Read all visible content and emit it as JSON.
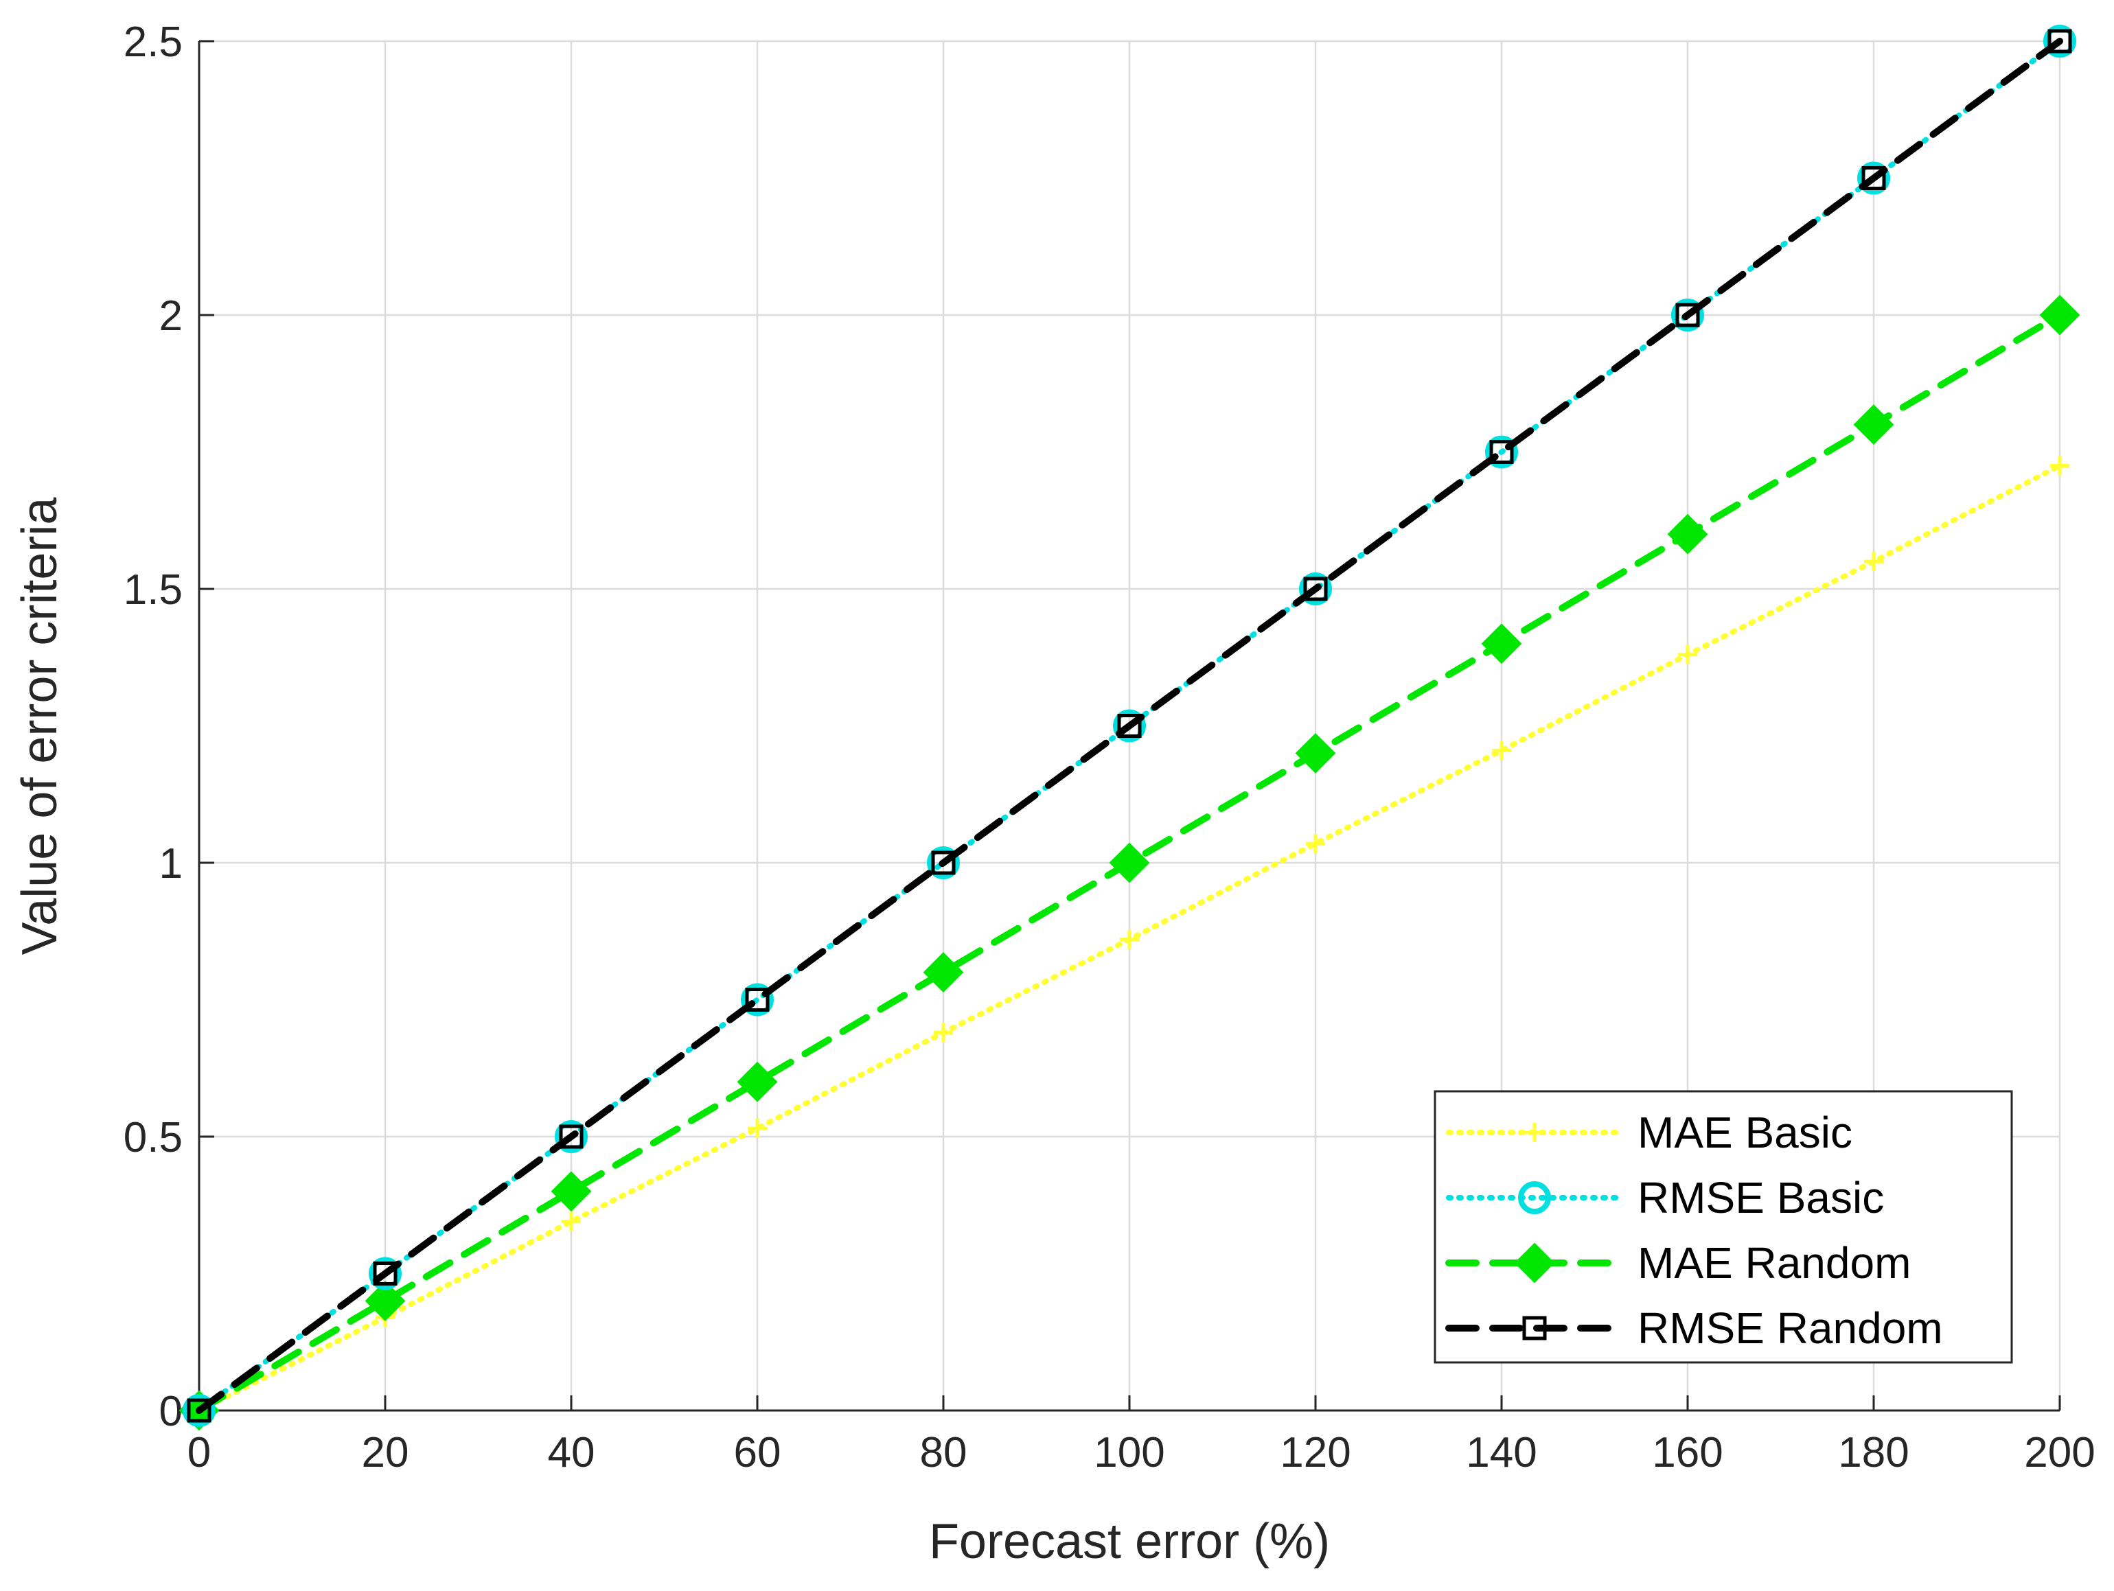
{
  "chart_data": {
    "type": "line",
    "xlabel": "Forecast error (%)",
    "ylabel": "Value of error criteria",
    "xlim": [
      0,
      200
    ],
    "ylim": [
      0,
      2.5
    ],
    "xticks": [
      0,
      20,
      40,
      60,
      80,
      100,
      120,
      140,
      160,
      180,
      200
    ],
    "yticks": [
      0,
      0.5,
      1,
      1.5,
      2,
      2.5
    ],
    "xtick_labels": [
      "0",
      "20",
      "40",
      "60",
      "80",
      "100",
      "120",
      "140",
      "160",
      "180",
      "200"
    ],
    "ytick_labels": [
      "0",
      "0.5",
      "1",
      "1.5",
      "2",
      "2.5"
    ],
    "grid": true,
    "legend_position": "bottom-right",
    "x": [
      0,
      20,
      40,
      60,
      80,
      100,
      120,
      140,
      160,
      180,
      200
    ],
    "series": [
      {
        "name": "MAE Basic",
        "color": "#ffff33",
        "line_style": "dotted",
        "marker": "plus",
        "values": [
          0,
          0.17,
          0.345,
          0.515,
          0.69,
          0.86,
          1.035,
          1.205,
          1.38,
          1.55,
          1.725
        ]
      },
      {
        "name": "RMSE Basic",
        "color": "#00e0e0",
        "line_style": "dotted",
        "marker": "circle",
        "values": [
          0,
          0.25,
          0.5,
          0.75,
          1.0,
          1.25,
          1.5,
          1.75,
          2.0,
          2.25,
          2.5
        ]
      },
      {
        "name": "MAE Random",
        "color": "#00e600",
        "line_style": "dashed",
        "marker": "diamond",
        "values": [
          0,
          0.2,
          0.4,
          0.6,
          0.8,
          1.0,
          1.2,
          1.4,
          1.6,
          1.8,
          2.0
        ]
      },
      {
        "name": "RMSE Random",
        "color": "#000000",
        "line_style": "dashed",
        "marker": "square",
        "values": [
          0,
          0.25,
          0.5,
          0.75,
          1.0,
          1.25,
          1.5,
          1.75,
          2.0,
          2.25,
          2.5
        ]
      }
    ]
  }
}
